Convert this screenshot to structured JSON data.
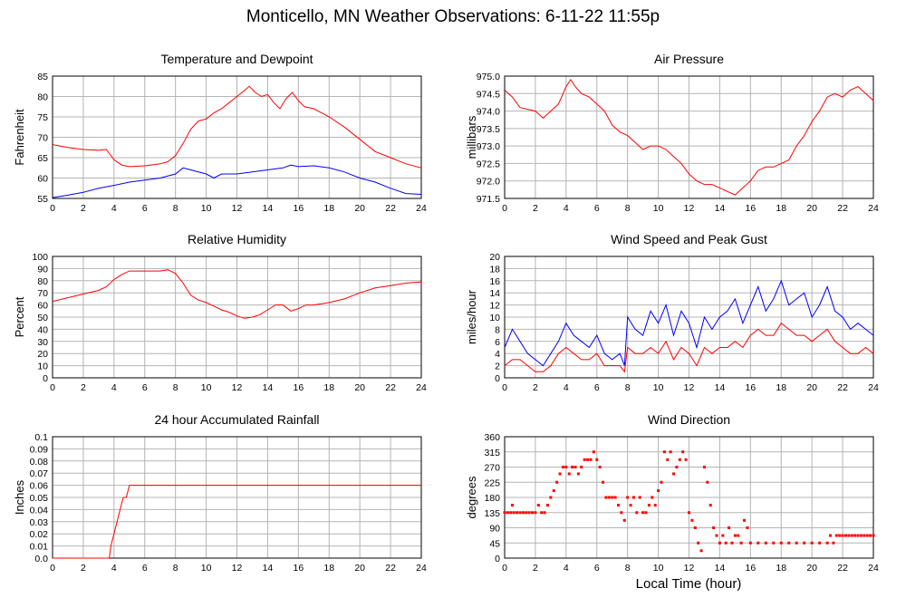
{
  "page": {
    "title": "Monticello, MN Weather Observations: 6-11-22 11:55p",
    "x_axis_label": "Local Time (hour)"
  },
  "colors": {
    "red": "#ff0000",
    "blue": "#0000ff",
    "grid": "#b4b4b4"
  },
  "chart_data": [
    {
      "id": "temp",
      "type": "line",
      "title": "Temperature and Dewpoint",
      "ylabel": "Fahrenheit",
      "xlim": [
        0,
        24
      ],
      "ylim": [
        55,
        85
      ],
      "xticks": [
        0,
        2,
        4,
        6,
        8,
        10,
        12,
        14,
        16,
        18,
        20,
        22,
        24
      ],
      "yticks": [
        55,
        60,
        65,
        70,
        75,
        80,
        85
      ],
      "grid": true,
      "series": [
        {
          "color": "red",
          "x": [
            0,
            1,
            2,
            3,
            3.5,
            4,
            4.5,
            5,
            6,
            7,
            7.5,
            8,
            8.5,
            9,
            9.5,
            10,
            10.5,
            11,
            11.5,
            12,
            12.5,
            12.8,
            13.2,
            13.6,
            14,
            14.4,
            14.8,
            15.2,
            15.6,
            16,
            16.4,
            17,
            18,
            19,
            20,
            21,
            22,
            23,
            24
          ],
          "y": [
            68.2,
            67.5,
            67,
            66.8,
            67,
            64.5,
            63.2,
            62.8,
            63,
            63.5,
            64,
            65.5,
            68.5,
            72,
            74,
            74.5,
            76,
            77,
            78.5,
            80,
            81.5,
            82.5,
            81,
            80,
            80.5,
            78.5,
            77,
            79.5,
            81,
            79,
            77.5,
            77,
            75,
            72.5,
            69.5,
            66.5,
            65,
            63.5,
            62.5
          ]
        },
        {
          "color": "blue",
          "x": [
            0,
            1,
            2,
            3,
            4,
            5,
            6,
            7,
            8,
            8.5,
            9,
            10,
            10.5,
            11,
            12,
            13,
            14,
            15,
            15.5,
            16,
            17,
            18,
            19,
            20,
            21,
            22,
            23,
            24
          ],
          "y": [
            55.2,
            55.8,
            56.5,
            57.5,
            58.2,
            59,
            59.5,
            60,
            61,
            62.5,
            62,
            61,
            60,
            61,
            61,
            61.5,
            62,
            62.5,
            63.2,
            62.8,
            63,
            62.5,
            61.5,
            60,
            59,
            57.5,
            56.2,
            56
          ]
        }
      ]
    },
    {
      "id": "pressure",
      "type": "line",
      "title": "Air Pressure",
      "ylabel": "millibars",
      "xlim": [
        0,
        24
      ],
      "ylim": [
        971.5,
        975.0
      ],
      "xticks": [
        0,
        2,
        4,
        6,
        8,
        10,
        12,
        14,
        16,
        18,
        20,
        22,
        24
      ],
      "yticks": [
        971.5,
        972.0,
        972.5,
        973.0,
        973.5,
        974.0,
        974.5,
        975.0
      ],
      "ytick_labels": [
        "971.5",
        "972.0",
        "972.5",
        "973.0",
        "973.5",
        "974.0",
        "974.5",
        "975.0"
      ],
      "grid": true,
      "series": [
        {
          "color": "red",
          "x": [
            0,
            0.5,
            1,
            2,
            2.5,
            3,
            3.5,
            4,
            4.3,
            4.6,
            5,
            5.5,
            6,
            6.5,
            7,
            7.5,
            8,
            8.5,
            9,
            9.5,
            10,
            10.5,
            11,
            11.5,
            12,
            12.5,
            13,
            13.5,
            14,
            14.5,
            15,
            15.5,
            16,
            16.5,
            17,
            17.5,
            18,
            18.5,
            19,
            19.5,
            20,
            20.5,
            21,
            21.5,
            22,
            22.5,
            23,
            23.5,
            24
          ],
          "y": [
            974.6,
            974.4,
            974.1,
            974.0,
            973.8,
            974.0,
            974.2,
            974.7,
            974.9,
            974.7,
            974.5,
            974.4,
            974.2,
            974.0,
            973.6,
            973.4,
            973.3,
            973.1,
            972.9,
            973.0,
            973.0,
            972.9,
            972.7,
            972.5,
            972.2,
            972.0,
            971.9,
            971.9,
            971.8,
            971.7,
            971.6,
            971.8,
            972.0,
            972.3,
            972.4,
            972.4,
            972.5,
            972.6,
            973.0,
            973.3,
            973.7,
            974.0,
            974.4,
            974.5,
            974.4,
            974.6,
            974.7,
            974.5,
            974.3
          ]
        }
      ]
    },
    {
      "id": "humidity",
      "type": "line",
      "title": "Relative Humidity",
      "ylabel": "Percent",
      "xlim": [
        0,
        24
      ],
      "ylim": [
        0,
        100
      ],
      "xticks": [
        0,
        2,
        4,
        6,
        8,
        10,
        12,
        14,
        16,
        18,
        20,
        22,
        24
      ],
      "yticks": [
        0,
        10,
        20,
        30,
        40,
        50,
        60,
        70,
        80,
        90,
        100
      ],
      "grid": true,
      "series": [
        {
          "color": "red",
          "x": [
            0,
            1,
            2,
            3,
            3.5,
            4,
            4.5,
            5,
            6,
            7,
            7.5,
            8,
            8.5,
            9,
            9.5,
            10,
            10.5,
            11,
            11.5,
            12,
            12.5,
            13,
            13.5,
            14,
            14.5,
            15,
            15.5,
            16,
            16.5,
            17,
            18,
            19,
            20,
            21,
            22,
            23,
            24
          ],
          "y": [
            63,
            66,
            69,
            72,
            75,
            81,
            85,
            88,
            88,
            88,
            89,
            86,
            78,
            68,
            64,
            62,
            59,
            56,
            54,
            51,
            49,
            50,
            52,
            56,
            60,
            60,
            55,
            57,
            60,
            60,
            62,
            65,
            70,
            74,
            76,
            78,
            79
          ]
        }
      ]
    },
    {
      "id": "wind",
      "type": "line",
      "title": "Wind Speed and Peak Gust",
      "ylabel": "miles/hour",
      "xlim": [
        0,
        24
      ],
      "ylim": [
        0,
        20
      ],
      "xticks": [
        0,
        2,
        4,
        6,
        8,
        10,
        12,
        14,
        16,
        18,
        20,
        22,
        24
      ],
      "yticks": [
        0,
        2,
        4,
        6,
        8,
        10,
        12,
        14,
        16,
        18,
        20
      ],
      "grid": true,
      "series": [
        {
          "color": "blue",
          "x": [
            0,
            0.5,
            1,
            1.5,
            2,
            2.5,
            3,
            3.5,
            4,
            4.5,
            5,
            5.5,
            6,
            6.5,
            7,
            7.5,
            7.8,
            8,
            8.5,
            9,
            9.5,
            10,
            10.5,
            11,
            11.5,
            12,
            12.5,
            13,
            13.5,
            14,
            14.5,
            15,
            15.5,
            16,
            16.5,
            17,
            17.5,
            18,
            18.5,
            19,
            19.5,
            20,
            20.5,
            21,
            21.5,
            22,
            22.5,
            23,
            23.5,
            24
          ],
          "y": [
            5,
            8,
            6,
            4,
            3,
            2,
            4,
            6,
            9,
            7,
            6,
            5,
            7,
            4,
            3,
            4,
            2,
            10,
            8,
            7,
            11,
            9,
            12,
            7,
            11,
            9,
            5,
            10,
            8,
            10,
            11,
            13,
            9,
            12,
            15,
            11,
            13,
            16,
            12,
            13,
            14,
            10,
            12,
            15,
            11,
            10,
            8,
            9,
            8,
            7
          ]
        },
        {
          "color": "red",
          "x": [
            0,
            0.5,
            1,
            1.5,
            2,
            2.5,
            3,
            3.5,
            4,
            4.5,
            5,
            5.5,
            6,
            6.5,
            7,
            7.5,
            7.8,
            8,
            8.5,
            9,
            9.5,
            10,
            10.5,
            11,
            11.5,
            12,
            12.5,
            13,
            13.5,
            14,
            14.5,
            15,
            15.5,
            16,
            16.5,
            17,
            17.5,
            18,
            18.5,
            19,
            19.5,
            20,
            20.5,
            21,
            21.5,
            22,
            22.5,
            23,
            23.5,
            24
          ],
          "y": [
            2,
            3,
            3,
            2,
            1,
            1,
            2,
            4,
            5,
            4,
            3,
            3,
            4,
            2,
            2,
            2,
            1,
            5,
            4,
            4,
            5,
            4,
            6,
            3,
            5,
            4,
            2,
            5,
            4,
            5,
            5,
            6,
            5,
            7,
            8,
            7,
            7,
            9,
            8,
            7,
            7,
            6,
            7,
            8,
            6,
            5,
            4,
            4,
            5,
            4
          ]
        }
      ]
    },
    {
      "id": "rain",
      "type": "line",
      "title": "24 hour Accumulated Rainfall",
      "ylabel": "Inches",
      "xlim": [
        0,
        24
      ],
      "ylim": [
        0,
        0.1
      ],
      "xticks": [
        0,
        2,
        4,
        6,
        8,
        10,
        12,
        14,
        16,
        18,
        20,
        22,
        24
      ],
      "yticks": [
        0,
        0.01,
        0.02,
        0.03,
        0.04,
        0.05,
        0.06,
        0.07,
        0.08,
        0.09,
        0.1
      ],
      "ytick_labels": [
        "0.0",
        "0.01",
        "0.02",
        "0.03",
        "0.04",
        "0.05",
        "0.06",
        "0.07",
        "0.08",
        "0.09",
        "0.1"
      ],
      "grid": true,
      "series": [
        {
          "color": "red",
          "x": [
            0,
            3.7,
            3.8,
            4.0,
            4.2,
            4.4,
            4.6,
            4.8,
            5.0,
            24
          ],
          "y": [
            0,
            0,
            0.01,
            0.02,
            0.03,
            0.04,
            0.05,
            0.05,
            0.06,
            0.06
          ]
        }
      ]
    },
    {
      "id": "direction",
      "type": "scatter",
      "title": "Wind Direction",
      "ylabel": "degrees",
      "xlim": [
        0,
        24
      ],
      "ylim": [
        0,
        360
      ],
      "xticks": [
        0,
        2,
        4,
        6,
        8,
        10,
        12,
        14,
        16,
        18,
        20,
        22,
        24
      ],
      "yticks": [
        0,
        45,
        90,
        135,
        180,
        225,
        270,
        315,
        360
      ],
      "grid": true,
      "series": [
        {
          "color": "red",
          "x": [
            0,
            0.2,
            0.4,
            0.5,
            0.6,
            0.8,
            1,
            1.2,
            1.4,
            1.6,
            1.8,
            2,
            2.2,
            2.4,
            2.6,
            2.8,
            3,
            3.2,
            3.4,
            3.6,
            3.8,
            4,
            4.2,
            4.4,
            4.6,
            4.8,
            5,
            5.2,
            5.4,
            5.6,
            5.8,
            6,
            6.2,
            6.4,
            6.6,
            6.8,
            7,
            7.2,
            7.4,
            7.6,
            7.8,
            8,
            8.2,
            8.4,
            8.6,
            8.8,
            9,
            9.2,
            9.4,
            9.6,
            9.8,
            10,
            10.2,
            10.4,
            10.6,
            10.8,
            11,
            11.2,
            11.4,
            11.6,
            11.8,
            12,
            12.2,
            12.4,
            12.6,
            12.8,
            13,
            13.2,
            13.4,
            13.6,
            13.8,
            14,
            14.2,
            14.4,
            14.6,
            14.8,
            15,
            15.2,
            15.4,
            15.6,
            15.8,
            16,
            16.5,
            17,
            17.5,
            18,
            18.5,
            19,
            19.5,
            20,
            20.5,
            21,
            21.2,
            21.4,
            21.6,
            21.8,
            22,
            22.2,
            22.4,
            22.6,
            22.8,
            23,
            23.2,
            23.4,
            23.6,
            23.8,
            24
          ],
          "y": [
            135,
            135,
            135,
            157,
            135,
            135,
            135,
            135,
            135,
            135,
            135,
            135,
            157,
            135,
            135,
            157,
            180,
            200,
            225,
            250,
            270,
            270,
            250,
            270,
            270,
            250,
            270,
            292,
            292,
            292,
            315,
            292,
            270,
            225,
            180,
            180,
            180,
            180,
            157,
            135,
            112,
            180,
            157,
            180,
            135,
            180,
            135,
            135,
            157,
            180,
            157,
            200,
            225,
            315,
            292,
            315,
            250,
            270,
            292,
            315,
            292,
            135,
            112,
            90,
            45,
            22,
            270,
            225,
            157,
            90,
            67,
            45,
            67,
            45,
            90,
            45,
            67,
            67,
            45,
            112,
            90,
            45,
            45,
            45,
            45,
            45,
            45,
            45,
            45,
            45,
            45,
            45,
            67,
            45,
            67,
            67,
            67,
            67,
            67,
            67,
            67,
            67,
            67,
            67,
            67,
            67,
            67
          ]
        }
      ]
    }
  ]
}
